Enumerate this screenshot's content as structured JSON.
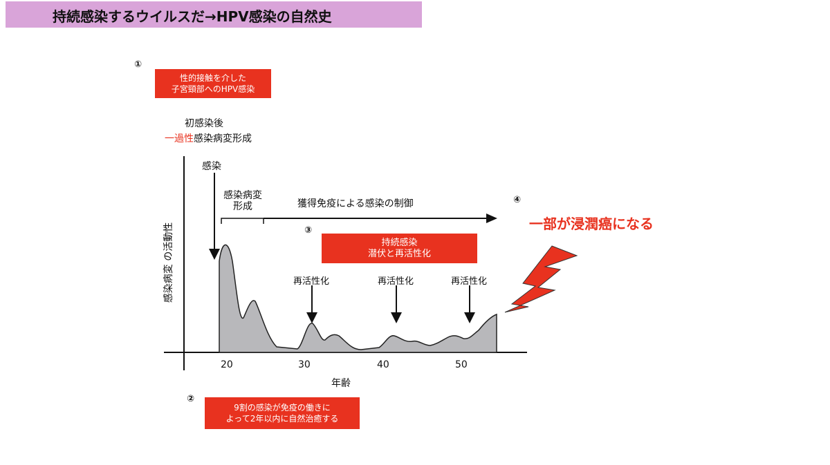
{
  "title": "持続感染するウイルスだ→HPV感染の自然史",
  "step1": {
    "num": "①",
    "box_line1": "性的接触を介した",
    "box_line2": "子宮頸部へのHPV感染"
  },
  "initial": {
    "line1": "初感染後",
    "line2_red": "一過性",
    "line2_rest": "感染病変形成"
  },
  "step2": {
    "num": "②",
    "box_line1": "9割の感染が免疫の働きに",
    "box_line2": "よって2年以内に自然治癒する"
  },
  "step3": {
    "num": "③",
    "box_line1": "持続感染",
    "box_line2": "潜伏と再活性化"
  },
  "step4": {
    "num": "④",
    "text": "一部が浸潤癌になる"
  },
  "chart": {
    "ylabel": "感染病変 の活動性",
    "xlabel": "年齢",
    "ticks": [
      "20",
      "30",
      "40",
      "50"
    ],
    "infection_label": "感染",
    "lesion_label_line1": "感染病変",
    "lesion_label_line2": "形成",
    "immunity_label": "獲得免疫による感染の制御",
    "reactivation_labels": [
      "再活性化",
      "再活性化",
      "再活性化"
    ]
  },
  "colors": {
    "accent_red": "#e8321f",
    "title_bg": "#d9a4d9",
    "curve_fill": "#b8b8bb"
  },
  "icons": {
    "lightning": "lightning-bolt-icon"
  }
}
